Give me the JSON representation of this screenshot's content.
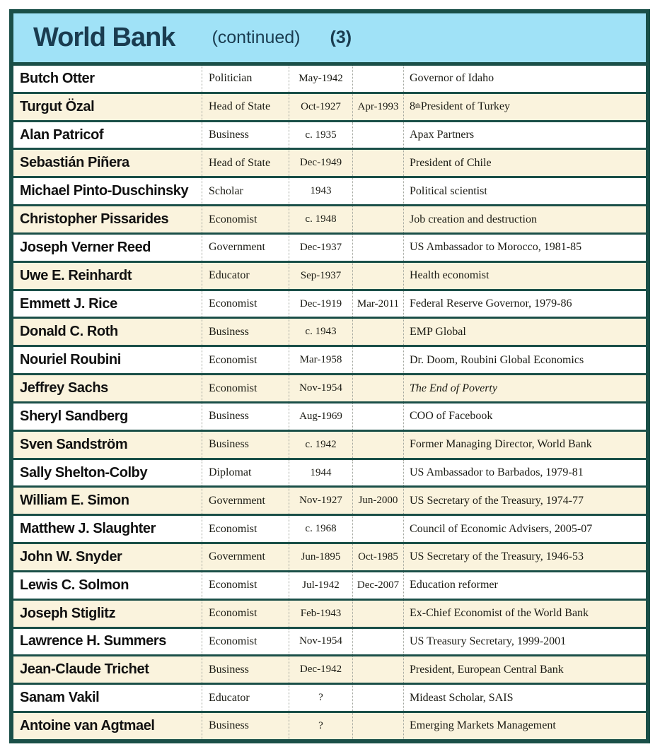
{
  "header": {
    "title": "World Bank",
    "subtitle": "(continued)",
    "page": "(3)"
  },
  "colors": {
    "frame_border": "#1a4f48",
    "header_bg": "#a0e2f7",
    "header_text": "#1a3c50",
    "row_bg": "#ffffff",
    "row_alt_bg": "#faf3dd",
    "column_divider_dotted": "#a0a49c"
  },
  "rows": [
    {
      "name": "Butch Otter",
      "role": "Politician",
      "born": "May-1942",
      "died": "",
      "desc": "Governor of Idaho"
    },
    {
      "name": "Turgut Özal",
      "role": "Head of State",
      "born": "Oct-1927",
      "died": "Apr-1993",
      "desc": [
        {
          "t": "8"
        },
        {
          "t": "th",
          "sup": true
        },
        {
          "t": " President of Turkey"
        }
      ]
    },
    {
      "name": "Alan Patricof",
      "role": "Business",
      "born": "c. 1935",
      "died": "",
      "desc": "Apax Partners"
    },
    {
      "name": "Sebastián Piñera",
      "role": "Head of State",
      "born": "Dec-1949",
      "died": "",
      "desc": "President of Chile"
    },
    {
      "name": "Michael Pinto-Duschinsky",
      "role": "Scholar",
      "born": "1943",
      "died": "",
      "desc": "Political scientist"
    },
    {
      "name": "Christopher Pissarides",
      "role": "Economist",
      "born": "c. 1948",
      "died": "",
      "desc": "Job creation and destruction"
    },
    {
      "name": "Joseph Verner Reed",
      "role": "Government",
      "born": "Dec-1937",
      "died": "",
      "desc": "US Ambassador to Morocco, 1981-85"
    },
    {
      "name": "Uwe E. Reinhardt",
      "role": "Educator",
      "born": "Sep-1937",
      "died": "",
      "desc": "Health economist"
    },
    {
      "name": "Emmett J. Rice",
      "role": "Economist",
      "born": "Dec-1919",
      "died": "Mar-2011",
      "desc": "Federal Reserve Governor, 1979-86"
    },
    {
      "name": "Donald C. Roth",
      "role": "Business",
      "born": "c. 1943",
      "died": "",
      "desc": "EMP Global"
    },
    {
      "name": "Nouriel Roubini",
      "role": "Economist",
      "born": "Mar-1958",
      "died": "",
      "desc": "Dr. Doom, Roubini Global Economics"
    },
    {
      "name": "Jeffrey Sachs",
      "role": "Economist",
      "born": "Nov-1954",
      "died": "",
      "desc": [
        {
          "t": "The End of Poverty",
          "italic": true
        }
      ]
    },
    {
      "name": "Sheryl Sandberg",
      "role": "Business",
      "born": "Aug-1969",
      "died": "",
      "desc": "COO of Facebook"
    },
    {
      "name": "Sven Sandström",
      "role": "Business",
      "born": "c. 1942",
      "died": "",
      "desc": "Former Managing Director, World Bank"
    },
    {
      "name": "Sally Shelton-Colby",
      "role": "Diplomat",
      "born": "1944",
      "died": "",
      "desc": "US Ambassador to Barbados, 1979-81"
    },
    {
      "name": "William E. Simon",
      "role": "Government",
      "born": "Nov-1927",
      "died": "Jun-2000",
      "desc": "US Secretary of the Treasury, 1974-77"
    },
    {
      "name": "Matthew J. Slaughter",
      "role": "Economist",
      "born": "c. 1968",
      "died": "",
      "desc": "Council of Economic Advisers, 2005-07"
    },
    {
      "name": "John W. Snyder",
      "role": "Government",
      "born": "Jun-1895",
      "died": "Oct-1985",
      "desc": "US Secretary of the Treasury, 1946-53"
    },
    {
      "name": "Lewis C. Solmon",
      "role": "Economist",
      "born": "Jul-1942",
      "died": "Dec-2007",
      "desc": "Education reformer"
    },
    {
      "name": "Joseph Stiglitz",
      "role": "Economist",
      "born": "Feb-1943",
      "died": "",
      "desc": "Ex-Chief Economist of the World Bank"
    },
    {
      "name": "Lawrence H. Summers",
      "role": "Economist",
      "born": "Nov-1954",
      "died": "",
      "desc": "US Treasury Secretary, 1999-2001"
    },
    {
      "name": "Jean-Claude Trichet",
      "role": "Business",
      "born": "Dec-1942",
      "died": "",
      "desc": "President, European Central Bank"
    },
    {
      "name": "Sanam Vakil",
      "role": "Educator",
      "born": "?",
      "died": "",
      "desc": "Mideast Scholar, SAIS"
    },
    {
      "name": "Antoine van Agtmael",
      "role": "Business",
      "born": "?",
      "died": "",
      "desc": "Emerging Markets Management"
    }
  ]
}
